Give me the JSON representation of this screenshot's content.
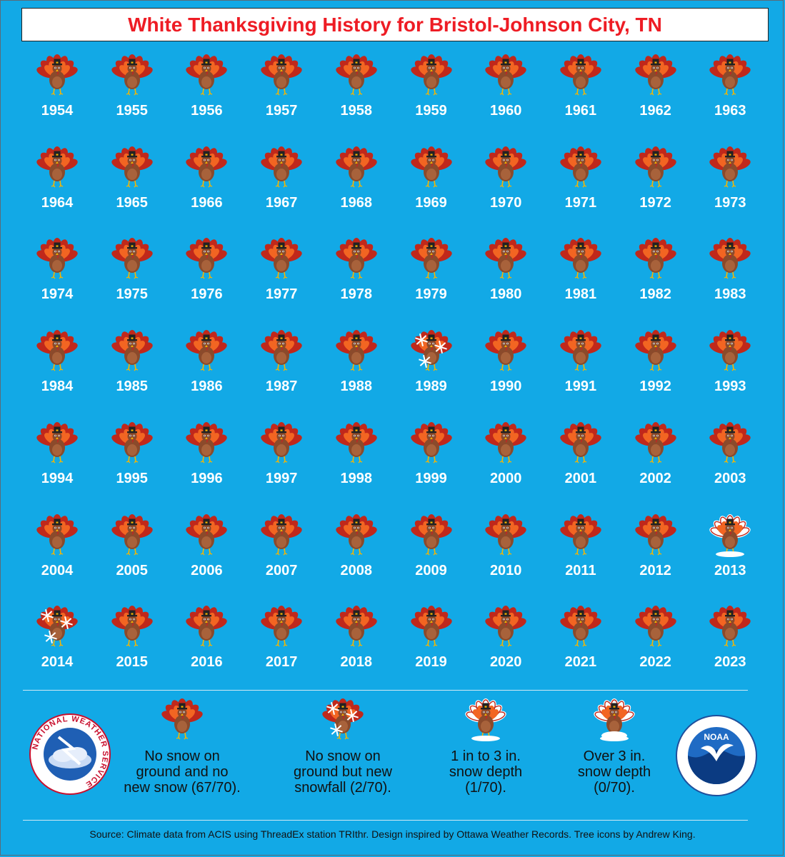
{
  "title": "White Thanksgiving History for Bristol-Johnson City, TN",
  "colors": {
    "background": "#12a9e6",
    "title_text": "#ee1c24",
    "turkey_feather_outer": "#c0281b",
    "turkey_feather_mid": "#f26522",
    "turkey_body": "#8b4a2b",
    "snow": "#ffffff"
  },
  "chart_data": {
    "type": "table",
    "categories": [
      "No snow on ground and no new snow (67/70).",
      "No snow on ground but new snowfall (2/70).",
      "1 in to 3 in. snow depth (1/70).",
      "Over 3 in. snow depth (0/70)."
    ],
    "counts": [
      67,
      2,
      1,
      0
    ],
    "years": [
      {
        "year": "1954",
        "cat": 0
      },
      {
        "year": "1955",
        "cat": 0
      },
      {
        "year": "1956",
        "cat": 0
      },
      {
        "year": "1957",
        "cat": 0
      },
      {
        "year": "1958",
        "cat": 0
      },
      {
        "year": "1959",
        "cat": 0
      },
      {
        "year": "1960",
        "cat": 0
      },
      {
        "year": "1961",
        "cat": 0
      },
      {
        "year": "1962",
        "cat": 0
      },
      {
        "year": "1963",
        "cat": 0
      },
      {
        "year": "1964",
        "cat": 0
      },
      {
        "year": "1965",
        "cat": 0
      },
      {
        "year": "1966",
        "cat": 0
      },
      {
        "year": "1967",
        "cat": 0
      },
      {
        "year": "1968",
        "cat": 0
      },
      {
        "year": "1969",
        "cat": 0
      },
      {
        "year": "1970",
        "cat": 0
      },
      {
        "year": "1971",
        "cat": 0
      },
      {
        "year": "1972",
        "cat": 0
      },
      {
        "year": "1973",
        "cat": 0
      },
      {
        "year": "1974",
        "cat": 0
      },
      {
        "year": "1975",
        "cat": 0
      },
      {
        "year": "1976",
        "cat": 0
      },
      {
        "year": "1977",
        "cat": 0
      },
      {
        "year": "1978",
        "cat": 0
      },
      {
        "year": "1979",
        "cat": 0
      },
      {
        "year": "1980",
        "cat": 0
      },
      {
        "year": "1981",
        "cat": 0
      },
      {
        "year": "1982",
        "cat": 0
      },
      {
        "year": "1983",
        "cat": 0
      },
      {
        "year": "1984",
        "cat": 0
      },
      {
        "year": "1985",
        "cat": 0
      },
      {
        "year": "1986",
        "cat": 0
      },
      {
        "year": "1987",
        "cat": 0
      },
      {
        "year": "1988",
        "cat": 0
      },
      {
        "year": "1989",
        "cat": 1
      },
      {
        "year": "1990",
        "cat": 0
      },
      {
        "year": "1991",
        "cat": 0
      },
      {
        "year": "1992",
        "cat": 0
      },
      {
        "year": "1993",
        "cat": 0
      },
      {
        "year": "1994",
        "cat": 0
      },
      {
        "year": "1995",
        "cat": 0
      },
      {
        "year": "1996",
        "cat": 0
      },
      {
        "year": "1997",
        "cat": 0
      },
      {
        "year": "1998",
        "cat": 0
      },
      {
        "year": "1999",
        "cat": 0
      },
      {
        "year": "2000",
        "cat": 0
      },
      {
        "year": "2001",
        "cat": 0
      },
      {
        "year": "2002",
        "cat": 0
      },
      {
        "year": "2003",
        "cat": 0
      },
      {
        "year": "2004",
        "cat": 0
      },
      {
        "year": "2005",
        "cat": 0
      },
      {
        "year": "2006",
        "cat": 0
      },
      {
        "year": "2007",
        "cat": 0
      },
      {
        "year": "2008",
        "cat": 0
      },
      {
        "year": "2009",
        "cat": 0
      },
      {
        "year": "2010",
        "cat": 0
      },
      {
        "year": "2011",
        "cat": 0
      },
      {
        "year": "2012",
        "cat": 0
      },
      {
        "year": "2013",
        "cat": 2
      },
      {
        "year": "2014",
        "cat": 1
      },
      {
        "year": "2015",
        "cat": 0
      },
      {
        "year": "2016",
        "cat": 0
      },
      {
        "year": "2017",
        "cat": 0
      },
      {
        "year": "2018",
        "cat": 0
      },
      {
        "year": "2019",
        "cat": 0
      },
      {
        "year": "2020",
        "cat": 0
      },
      {
        "year": "2021",
        "cat": 0
      },
      {
        "year": "2022",
        "cat": 0
      },
      {
        "year": "2023",
        "cat": 0
      }
    ]
  },
  "legend": [
    {
      "label": "No snow on\nground and no\nnew snow (67/70).",
      "icon": "turkey-icon"
    },
    {
      "label": "No snow on\nground but new\nsnowfall (2/70).",
      "icon": "turkey-snowfall-icon"
    },
    {
      "label": "1 in to 3 in.\nsnow depth\n(1/70).",
      "icon": "turkey-light-snow-icon"
    },
    {
      "label": "Over 3 in.\nsnow depth\n(0/70).",
      "icon": "turkey-heavy-snow-icon"
    }
  ],
  "logos": {
    "nws_text": "NATIONAL WEATHER SERVICE",
    "noaa_text": "NOAA"
  },
  "footer": "Source: Climate data from ACIS using ThreadEx station TRIthr. Design inspired by Ottawa Weather Records. Tree icons by Andrew King."
}
